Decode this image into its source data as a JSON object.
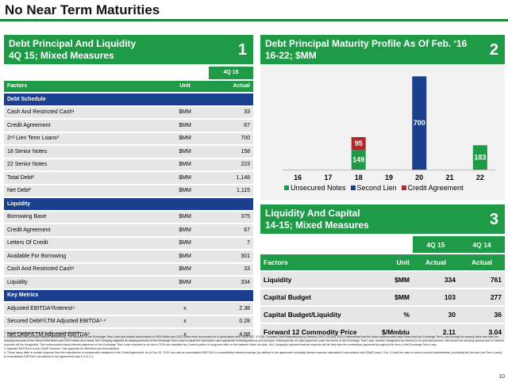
{
  "page": {
    "title": "No Near Term Maturities",
    "page_number": "10"
  },
  "panel1": {
    "title_line1": "Debt Principal And Liquidity",
    "title_line2": "4Q 15; Mixed Measures",
    "number": "1",
    "period": "4Q 15",
    "col_factors": "Factors",
    "col_unit": "Unit",
    "col_actual": "Actual",
    "sections": [
      {
        "name": "Debt Schedule",
        "rows": [
          {
            "label": "Cash And Restricted Cash¹",
            "unit": "$MM",
            "value": "33"
          },
          {
            "label": "Credit Agreement",
            "unit": "$MM",
            "value": "67"
          },
          {
            "label": "2ⁿᵈ Lien Term Loans²",
            "unit": "$MM",
            "value": "700"
          },
          {
            "label": "18 Senior Notes",
            "unit": "$MM",
            "value": "158"
          },
          {
            "label": "22 Senior Notes",
            "unit": "$MM",
            "value": "223"
          },
          {
            "label": "Total Debt²",
            "unit": "$MM",
            "value": "1,148"
          },
          {
            "label": "Net Debt²",
            "unit": "$MM",
            "value": "1,115"
          }
        ]
      },
      {
        "name": "Liquidity",
        "rows": [
          {
            "label": "Borrowing Base",
            "unit": "$MM",
            "value": "375"
          },
          {
            "label": "Credit Agreement",
            "unit": "$MM",
            "value": "67"
          },
          {
            "label": "Letters Of Credit",
            "unit": "$MM",
            "value": "7"
          },
          {
            "label": "Available For Borrowing",
            "unit": "$MM",
            "value": "301"
          },
          {
            "label": "Cash And Restricted Cash¹",
            "unit": "$MM",
            "value": "33"
          },
          {
            "label": "Liquidity",
            "unit": "$MM",
            "value": "334"
          }
        ]
      },
      {
        "name": "Key Metrics",
        "rows": [
          {
            "label": "Adjusted EBITDA³/Interest⁴",
            "unit": "x",
            "value": "2.38"
          },
          {
            "label": "Secured Debt²/LTM Adjusted EBITDA³·⁴",
            "unit": "x",
            "value": "0.28"
          },
          {
            "label": "Net Debt²/LTM Adjusted EBITDA³",
            "unit": "x",
            "value": "4.68"
          }
        ]
      }
    ]
  },
  "panel2": {
    "title_line1": "Debt Principal Maturity Profile As Of Feb. ‘16",
    "title_line2": "16-22; $MM",
    "number": "2"
  },
  "chart_data": {
    "type": "bar",
    "categories": [
      "16",
      "17",
      "18",
      "19",
      "20",
      "21",
      "22"
    ],
    "series": [
      {
        "name": "Unsecured Notes",
        "color": "#1f9b48",
        "values": [
          0,
          0,
          149,
          0,
          0,
          0,
          183
        ]
      },
      {
        "name": "Second Lien",
        "color": "#1b3f8f",
        "values": [
          0,
          0,
          0,
          0,
          700,
          0,
          0
        ]
      },
      {
        "name": "Credit Agreement",
        "color": "#b02a2a",
        "values": [
          0,
          0,
          95,
          0,
          0,
          0,
          0
        ]
      }
    ],
    "stacked": true,
    "ylim": [
      0,
      720
    ],
    "legend_position": "bottom"
  },
  "panel3": {
    "title_line1": "Liquidity And Capital",
    "title_line2": "14-15; Mixed Measures",
    "number": "3",
    "periods": [
      "4Q 15",
      "4Q 14"
    ],
    "col_factors": "Factors",
    "col_unit": "Unit",
    "col_actual": "Actual",
    "rows": [
      {
        "label": "Liquidity",
        "unit": "$MM",
        "v1": "334",
        "v2": "761"
      },
      {
        "label": "Capital Budget",
        "unit": "$MM",
        "v1": "103",
        "v2": "277"
      },
      {
        "label": "Capital Budget/Liquidity",
        "unit": "%",
        "v1": "30",
        "v2": "36"
      },
      {
        "label": "Forward 12 Commodity Price",
        "unit": "$/Mmbtu",
        "v1": "2.11",
        "v2": "3.04"
      }
    ]
  },
  "footnotes": [
    "1. Includes restricted cash of $21 million as of Dec 31, 2015.",
    "2. Represents total principal balance outstanding. The issuance of the Exchange Term Loan and related repurchases of 2018 Notes and 2022 Notes were accounted for in accordance with FASB ASC 470-60, Troubled Debt Restructuring by Debtors (\"ASC 470-60). EXCO determined that the future undiscounted cash flows from the Exchange Term Loan through its maturity were less than the carrying amounts of the retired 2018 Notes and 2022 Notes. As a result, the Company adjusted its carrying amount of the Exchange Term Loan to equal the total future cash payments, including interest and principal. Subsequently, all cash payments under the terms of the Exchange Term Loan, whether designated as interest or as principal amount, will reduce the carrying amount and no interest expense will be recognized. The undiscounted future interest payments on the Exchange Term Loan expected to be due in 2016 are classified as Current portion of long-term debt on the balance sheet. As such, the Company's reported interest expense will be less than the contractual payments throughout the term of the Exchange Term Loan.",
    "3. Adjusted EBITDA is a non-GAAP measure. See appendix for definition and reconciliation.",
    "4. These ratios differ in certain respects from the calculations of comparable measures in the Credit Agreement. As of Dec 31, 2015, the ratio of consolidated EBITDAX to consolidated interest expense (as defined in the agreement including interest expense calculated in accordance with GAAP) was 2.4 to 1.0 and the ratio of senior secured indebtedness (excluding the Second Lien Term Loans) to consolidated EBITDAX (as defined in the agreement) was 0.3 to 1.0."
  ]
}
